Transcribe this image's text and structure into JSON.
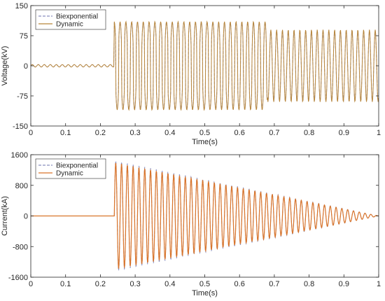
{
  "chart_data": [
    {
      "type": "line",
      "xlabel": "Time(s)",
      "ylabel": "Voltage(kV)",
      "xlim": [
        0,
        1
      ],
      "ylim": [
        -150,
        150
      ],
      "xticks": [
        "0",
        "0.1",
        "0.2",
        "0.3",
        "0.4",
        "0.5",
        "0.6",
        "0.7",
        "0.8",
        "0.9",
        "1"
      ],
      "yticks": [
        "-150",
        "-75",
        "0",
        "75",
        "150"
      ],
      "legend_position": "top-left",
      "series": [
        {
          "name": "Biexponential",
          "color": "#8a8fbf",
          "style": "dashed",
          "x": [
            0,
            0.24,
            0.24,
            0.53,
            0.53,
            0.68,
            0.68,
            1.0
          ],
          "y": [
            0,
            0,
            110,
            110,
            110,
            110,
            90,
            90
          ]
        },
        {
          "name": "Dynamic",
          "color": "#b8863b",
          "style": "solid",
          "x": [
            0,
            0.24,
            0.24,
            0.53,
            0.53,
            0.68,
            0.68,
            1.0
          ],
          "y": [
            0,
            0,
            110,
            110,
            110,
            110,
            90,
            90
          ]
        }
      ]
    },
    {
      "type": "line",
      "xlabel": "Time(s)",
      "ylabel": "Current(kA)",
      "xlim": [
        0,
        1
      ],
      "ylim": [
        -1600,
        1600
      ],
      "xticks": [
        "0",
        "0.1",
        "0.2",
        "0.3",
        "0.4",
        "0.5",
        "0.6",
        "0.7",
        "0.8",
        "0.9",
        "1"
      ],
      "yticks": [
        "-1600",
        "-800",
        "0",
        "800",
        "1600"
      ],
      "legend_position": "top-left",
      "series": [
        {
          "name": "Biexponential",
          "color": "#8a8fbf",
          "style": "dashed",
          "x": [
            0,
            0.24,
            0.24,
            1.0
          ],
          "y": [
            0,
            0,
            1450,
            0
          ]
        },
        {
          "name": "Dynamic",
          "color": "#d9742a",
          "style": "solid",
          "x": [
            0,
            0.24,
            0.24,
            1.0
          ],
          "y": [
            0,
            0,
            1400,
            0
          ]
        }
      ]
    }
  ]
}
